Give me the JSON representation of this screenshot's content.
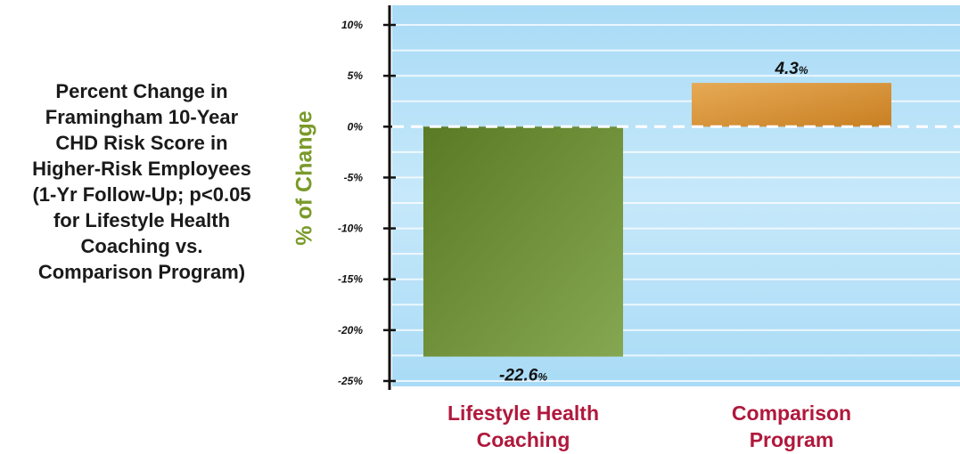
{
  "side_title": [
    "Percent Change in",
    "Framingham 10-Year",
    "CHD Risk Score in",
    "Higher-Risk Employees",
    "(1-Yr Follow-Up; p<0.05",
    "for Lifestyle Health",
    "Coaching vs.",
    "Comparison Program)"
  ],
  "chart_data": {
    "type": "bar",
    "categories": [
      "Lifestyle Health Coaching",
      "Comparison Program"
    ],
    "category_lines": [
      [
        "Lifestyle Health",
        "Coaching"
      ],
      [
        "Comparison",
        "Program"
      ]
    ],
    "values": [
      -22.6,
      4.3
    ],
    "value_labels": [
      "-22.6",
      "4.3"
    ],
    "value_unit": "%",
    "ylabel": "% of Change",
    "ylim": [
      -25,
      10
    ],
    "yticks": [
      10,
      5,
      0,
      -5,
      -10,
      -15,
      -20,
      -25
    ],
    "ytick_labels": [
      "10%",
      "5%",
      "0%",
      "-5%",
      "-10%",
      "-15%",
      "-20%",
      "-25%"
    ],
    "grid": true,
    "legend": "none",
    "colors": {
      "bar_negative": "#6f8f35",
      "bar_positive": "#dd9a3c",
      "background": "#b9e2f8",
      "category_label": "#b0183c",
      "ylabel": "#7a9a2a"
    }
  }
}
